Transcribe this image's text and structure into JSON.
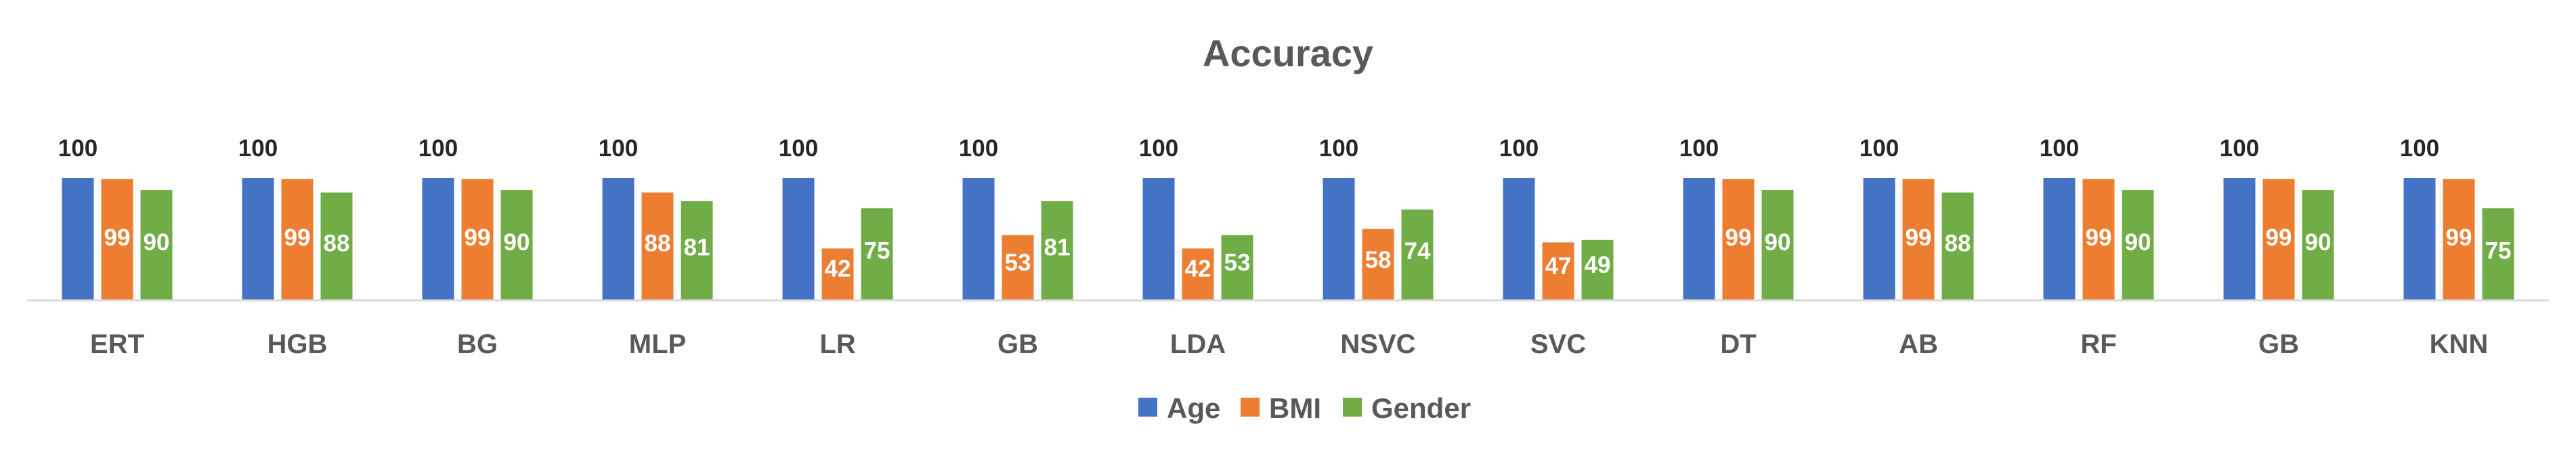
{
  "chart_data": {
    "type": "bar",
    "title": "Accuracy",
    "categories": [
      "ERT",
      "HGB",
      "BG",
      "MLP",
      "LR",
      "GB",
      "LDA",
      "NSVC",
      "SVC",
      "DT",
      "AB",
      "RF",
      "GB",
      "KNN"
    ],
    "series": [
      {
        "name": "Age",
        "color": "#4472C4",
        "values": [
          100,
          100,
          100,
          100,
          100,
          100,
          100,
          100,
          100,
          100,
          100,
          100,
          100,
          100
        ]
      },
      {
        "name": "BMI",
        "color": "#ED7D31",
        "values": [
          99,
          99,
          99,
          88,
          42,
          53,
          42,
          58,
          47,
          99,
          99,
          99,
          99,
          99
        ]
      },
      {
        "name": "Gender",
        "color": "#70AD47",
        "values": [
          90,
          88,
          90,
          81,
          75,
          81,
          53,
          74,
          49,
          90,
          88,
          90,
          90,
          75
        ]
      }
    ],
    "ylim": [
      0,
      100
    ],
    "xlabel": "",
    "ylabel": "",
    "grid": false,
    "legend": "bottom"
  }
}
